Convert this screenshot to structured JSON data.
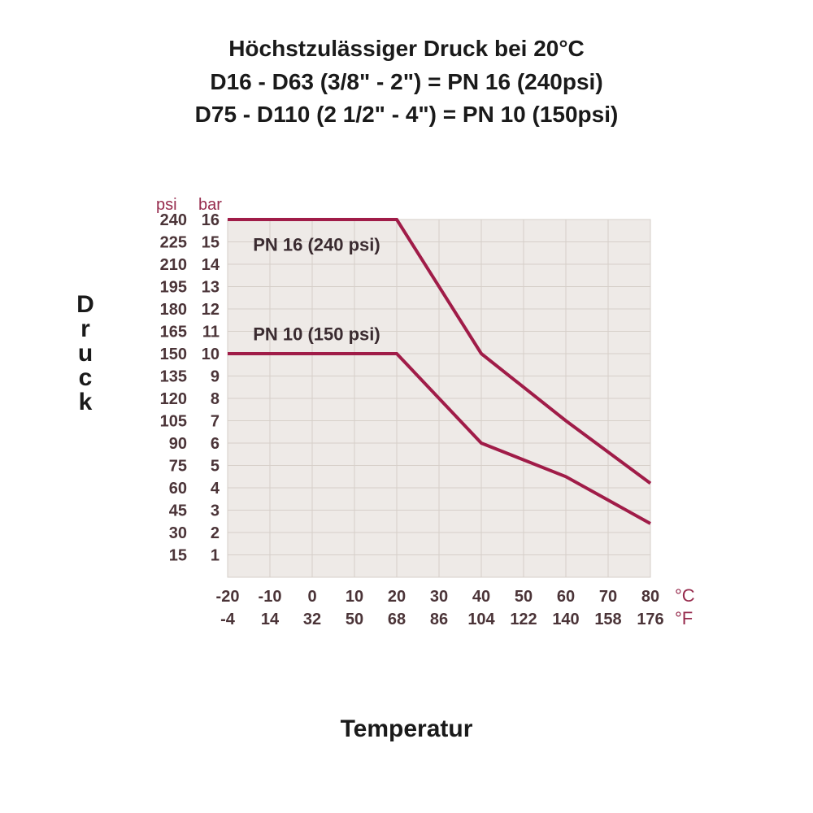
{
  "title": {
    "line1": "Höchstzulässiger Druck bei 20°C",
    "line2": "D16 - D63 (3/8\" - 2\") = PN 16 (240psi)",
    "line3": "D75 - D110 (2 1/2\" - 4\") = PN 10 (150psi)"
  },
  "axis_labels": {
    "y": "Druck",
    "x": "Temperatur"
  },
  "chart": {
    "type": "line",
    "background_color": "#eeeae7",
    "grid_color": "#d6cfc9",
    "line_color": "#a01c48",
    "line_width": 4,
    "accent_text_color": "#962a4c",
    "tick_text_color": "#4b3438",
    "font_size_ticks": 20,
    "font_size_series_label": 22,
    "y_header_psi": "psi",
    "y_header_bar": "bar",
    "y_ticks_bar": [
      16,
      15,
      14,
      13,
      12,
      11,
      10,
      9,
      8,
      7,
      6,
      5,
      4,
      3,
      2,
      1
    ],
    "y_ticks_psi": [
      240,
      225,
      210,
      195,
      180,
      165,
      150,
      135,
      120,
      105,
      90,
      75,
      60,
      45,
      30,
      15
    ],
    "ylim_bar": [
      0,
      16
    ],
    "x_ticks_c": [
      -20,
      -10,
      0,
      10,
      20,
      30,
      40,
      50,
      60,
      70,
      80
    ],
    "x_ticks_f": [
      -4,
      14,
      32,
      50,
      68,
      86,
      104,
      122,
      140,
      158,
      176
    ],
    "xlim_c": [
      -20,
      80
    ],
    "x_unit_top": "°C",
    "x_unit_bottom": "°F",
    "series": [
      {
        "name": "PN 16 (240 psi)",
        "label_pos_c": -14,
        "label_pos_bar": 14.6,
        "points_c_bar": [
          [
            -20,
            16
          ],
          [
            20,
            16
          ],
          [
            40,
            10
          ],
          [
            60,
            7
          ],
          [
            80,
            4.2
          ]
        ]
      },
      {
        "name": "PN 10 (150 psi)",
        "label_pos_c": -14,
        "label_pos_bar": 10.6,
        "points_c_bar": [
          [
            -20,
            10
          ],
          [
            20,
            10
          ],
          [
            40,
            6
          ],
          [
            60,
            4.5
          ],
          [
            80,
            2.4
          ]
        ]
      }
    ]
  }
}
